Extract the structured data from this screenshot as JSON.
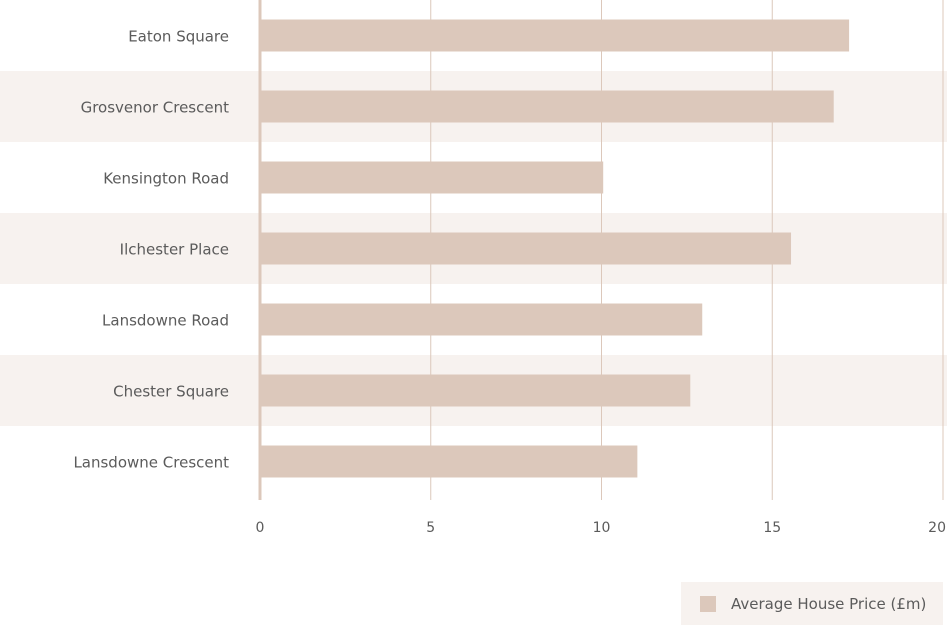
{
  "chart_data": {
    "type": "bar",
    "orientation": "horizontal",
    "title": "",
    "xlabel": "",
    "ylabel": "",
    "categories": [
      "Eaton Square",
      "Grosvenor Crescent",
      "Kensington Road",
      "Ilchester Place",
      "Lansdowne Road",
      "Chester Square",
      "Lansdowne Crescent"
    ],
    "series": [
      {
        "name": "Average House Price (£m)",
        "values": [
          17.25,
          16.8,
          10.05,
          15.55,
          12.95,
          12.6,
          11.05
        ]
      }
    ],
    "xlim": [
      0,
      20
    ],
    "xticks": [
      "0",
      "5",
      "10",
      "15",
      "20"
    ],
    "grid": "vertical",
    "legend": "bottom-right",
    "colors": {
      "bar": "#dcc8bb",
      "band": "#f7f2ef",
      "grid": "#dcc8bb",
      "text": "#5b5b5b"
    }
  },
  "legend": {
    "label": "Average House Price (£m)"
  }
}
